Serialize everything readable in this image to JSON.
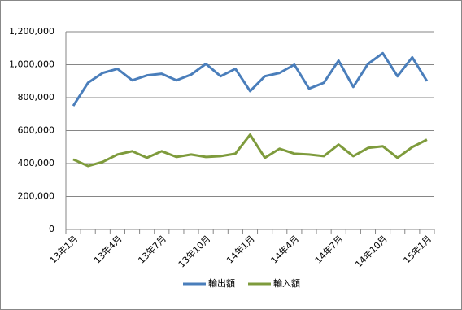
{
  "chart_data": {
    "type": "line",
    "categories": [
      "13年1月",
      null,
      null,
      "13年4月",
      null,
      null,
      "13年7月",
      null,
      null,
      "13年10月",
      null,
      null,
      "14年1月",
      null,
      null,
      "14年4月",
      null,
      null,
      "14年7月",
      null,
      null,
      "14年10月",
      null,
      null,
      "15年1月"
    ],
    "series": [
      {
        "name": "輸出額",
        "color": "#4a7ebb",
        "values": [
          750000,
          890000,
          950000,
          975000,
          905000,
          935000,
          945000,
          905000,
          940000,
          1005000,
          930000,
          975000,
          840000,
          930000,
          950000,
          1000000,
          855000,
          890000,
          1025000,
          865000,
          1005000,
          1070000,
          930000,
          1045000,
          900000
        ]
      },
      {
        "name": "輸入額",
        "color": "#7e9b3c",
        "values": [
          425000,
          385000,
          410000,
          455000,
          475000,
          435000,
          475000,
          440000,
          455000,
          440000,
          445000,
          460000,
          575000,
          435000,
          490000,
          460000,
          455000,
          445000,
          515000,
          445000,
          495000,
          505000,
          435000,
          500000,
          545000
        ]
      }
    ],
    "ylim": [
      0,
      1200000
    ],
    "yticks": [
      0,
      {
        "value": 200000,
        "label": "200,000"
      },
      {
        "value": 400000,
        "label": "400,000"
      },
      {
        "value": 600000,
        "label": "600,000"
      },
      {
        "value": 800000,
        "label": "800,000"
      },
      {
        "value": 1000000,
        "label": "1,000,000"
      },
      {
        "value": 1200000,
        "label": "1,200,000"
      }
    ],
    "grid": true,
    "legend": "bottom"
  }
}
